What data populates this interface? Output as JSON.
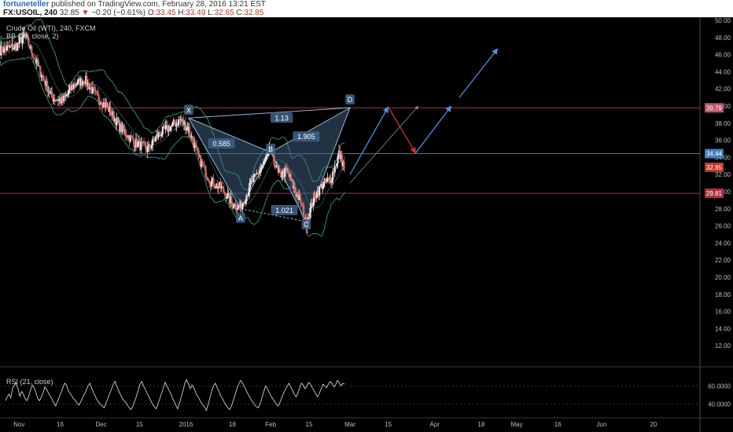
{
  "header": {
    "author": "fortuneteller",
    "published_text": "published on TradingView.com, February 28, 2016 13:21 EST",
    "symbol": "FX:USOIL, 240",
    "last": "32.85",
    "change_arrow": "▼",
    "change": "−0.20 (−0.61%)",
    "o_label": "O:",
    "o_value": "33.45",
    "h_label": "H:",
    "h_value": "33.49",
    "l_label": "L:",
    "l_value": "32.65",
    "c_label": "C:",
    "c_value": "32.85"
  },
  "legend": {
    "title": "Crude Oil (WTI), 240, FXCM",
    "bb": "BB (20, close, 2)",
    "rsi": "RSI (21, close)"
  },
  "colors": {
    "background": "#000000",
    "candle_up": "#e8e8e8",
    "candle_down": "#d06a6a",
    "bollinger": "#2e8b6f",
    "pattern_fill": "#4a6f94",
    "pattern_line": "#8fb4d8",
    "projection_up": "#4a90e2",
    "projection_down": "#d0312d",
    "resistance_line": "#b03040",
    "current_line": "#3f7fbf"
  },
  "chart_data": {
    "type": "candlestick",
    "title": "Crude Oil (WTI), 240, FXCM",
    "ylim": [
      10,
      50
    ],
    "y_ticks": [
      "50.00",
      "48.00",
      "46.00",
      "44.00",
      "42.00",
      "40.00",
      "38.00",
      "36.00",
      "34.00",
      "32.00",
      "30.00",
      "28.00",
      "26.00",
      "24.00",
      "22.00",
      "20.00",
      "18.00",
      "16.00",
      "14.00",
      "12.00"
    ],
    "x_ticks": [
      "Nov",
      "16",
      "Dec",
      "15",
      "2016",
      "18",
      "Feb",
      "15",
      "Mar",
      "15",
      "Apr",
      "18",
      "May",
      "16",
      "Jun",
      "20"
    ],
    "price_labels": [
      {
        "text": "39.79",
        "value": 39.79
      },
      {
        "text": "34.44",
        "value": 34.44
      },
      {
        "text": "32.85",
        "value": 32.85
      },
      {
        "text": "29.81",
        "value": 29.81
      }
    ],
    "horizontal_lines": [
      39.79,
      34.44,
      29.81
    ],
    "price_path": [
      {
        "date": "2015-10-25",
        "price": 46.5
      },
      {
        "date": "2015-10-31",
        "price": 47.0
      },
      {
        "date": "2015-11-03",
        "price": 48.3
      },
      {
        "date": "2015-11-08",
        "price": 44.5
      },
      {
        "date": "2015-11-13",
        "price": 41.0
      },
      {
        "date": "2015-11-17",
        "price": 40.6
      },
      {
        "date": "2015-11-21",
        "price": 42.5
      },
      {
        "date": "2015-11-25",
        "price": 43.1
      },
      {
        "date": "2015-11-29",
        "price": 41.2
      },
      {
        "date": "2015-12-03",
        "price": 40.0
      },
      {
        "date": "2015-12-08",
        "price": 37.5
      },
      {
        "date": "2015-12-13",
        "price": 35.8
      },
      {
        "date": "2015-12-18",
        "price": 34.9
      },
      {
        "date": "2015-12-22",
        "price": 36.7
      },
      {
        "date": "2015-12-26",
        "price": 37.5
      },
      {
        "date": "2015-12-30",
        "price": 38.4
      },
      {
        "date": "2016-01-02",
        "price": 37.3
      },
      {
        "date": "2016-01-06",
        "price": 33.7
      },
      {
        "date": "2016-01-10",
        "price": 31.2
      },
      {
        "date": "2016-01-14",
        "price": 30.4
      },
      {
        "date": "2016-01-18",
        "price": 28.6
      },
      {
        "date": "2016-01-21",
        "price": 28.2
      },
      {
        "date": "2016-01-25",
        "price": 31.0
      },
      {
        "date": "2016-01-29",
        "price": 33.0
      },
      {
        "date": "2016-02-01",
        "price": 34.8
      },
      {
        "date": "2016-02-04",
        "price": 31.9
      },
      {
        "date": "2016-02-07",
        "price": 32.4
      },
      {
        "date": "2016-02-10",
        "price": 30.0
      },
      {
        "date": "2016-02-12",
        "price": 28.8
      },
      {
        "date": "2016-02-14",
        "price": 26.3
      },
      {
        "date": "2016-02-17",
        "price": 29.5
      },
      {
        "date": "2016-02-20",
        "price": 30.8
      },
      {
        "date": "2016-02-23",
        "price": 31.5
      },
      {
        "date": "2016-02-26",
        "price": 34.4
      },
      {
        "date": "2016-02-28",
        "price": 32.85
      }
    ],
    "harmonic_pattern": {
      "points": [
        {
          "label": "X",
          "date": "2016-01-02",
          "price": 38.6
        },
        {
          "label": "A",
          "date": "2016-01-21",
          "price": 28.0
        },
        {
          "label": "B",
          "date": "2016-02-01",
          "price": 34.6
        },
        {
          "label": "C",
          "date": "2016-02-14",
          "price": 26.5
        },
        {
          "label": "D",
          "date": "2016-03-01",
          "price": 39.8
        }
      ],
      "ratios": [
        {
          "text": "0.585",
          "date": "2016-01-14",
          "price": 35.6
        },
        {
          "text": "1.13",
          "date": "2016-02-05",
          "price": 38.6
        },
        {
          "text": "1.905",
          "date": "2016-02-14",
          "price": 36.4
        },
        {
          "text": "1.021",
          "date": "2016-02-06",
          "price": 27.8
        }
      ]
    },
    "projections": [
      {
        "color": "up",
        "from": {
          "date": "2016-03-01",
          "price": 32.0
        },
        "to": {
          "date": "2016-03-15",
          "price": 39.9
        }
      },
      {
        "color": "down",
        "from": {
          "date": "2016-03-15",
          "price": 39.9
        },
        "to": {
          "date": "2016-03-25",
          "price": 34.5
        }
      },
      {
        "color": "up",
        "from": {
          "date": "2016-03-25",
          "price": 34.5
        },
        "to": {
          "date": "2016-04-07",
          "price": 40.0
        }
      },
      {
        "color": "up",
        "from": {
          "date": "2016-04-10",
          "price": 41.0
        },
        "to": {
          "date": "2016-04-24",
          "price": 46.7
        }
      },
      {
        "color": "thin",
        "from": {
          "date": "2016-03-01",
          "price": 31.0
        },
        "to": {
          "date": "2016-03-26",
          "price": 40.0
        }
      }
    ],
    "rsi": {
      "y_ticks": [
        "60.0000",
        "40.0000"
      ],
      "ylim": [
        25,
        75
      ],
      "values": [
        44,
        48,
        51,
        47,
        58,
        61,
        63,
        57,
        49,
        54,
        51,
        46,
        44,
        49,
        56,
        61,
        58,
        53,
        46,
        44,
        48,
        53,
        59,
        56,
        52,
        49,
        45,
        41,
        38,
        43,
        48,
        53,
        58,
        63,
        61,
        55,
        52,
        49,
        46,
        44,
        41,
        39,
        43,
        47,
        51,
        55,
        60,
        63,
        58,
        53,
        49,
        45,
        42,
        40,
        38,
        36,
        41,
        46,
        51,
        56,
        61,
        65,
        60,
        55,
        51,
        47,
        44,
        42,
        39,
        36,
        34,
        38,
        43,
        49,
        55,
        62,
        65,
        60,
        56,
        52,
        48,
        44,
        40,
        37,
        35,
        40,
        46,
        52,
        58,
        64,
        60,
        56,
        52,
        47,
        43,
        39,
        35,
        41,
        48,
        55,
        63,
        67,
        62,
        57,
        61,
        58,
        53,
        49,
        46,
        42,
        39,
        37,
        33,
        40,
        47,
        55,
        60,
        63,
        58,
        54,
        49,
        46,
        42,
        39,
        36,
        34,
        38,
        44,
        50,
        57,
        62,
        66,
        64,
        60,
        56,
        52,
        48,
        45,
        42,
        39,
        37,
        36,
        41,
        47,
        54,
        60,
        57,
        53,
        49,
        46,
        43,
        40,
        38,
        42,
        47,
        52,
        56,
        60,
        63,
        59,
        55,
        51,
        48,
        52,
        58,
        63,
        61,
        57,
        60,
        64,
        62,
        58,
        55,
        51,
        48,
        52,
        57,
        62,
        60,
        58,
        62,
        65,
        63,
        59,
        61,
        66,
        64,
        60,
        63,
        62
      ]
    }
  }
}
